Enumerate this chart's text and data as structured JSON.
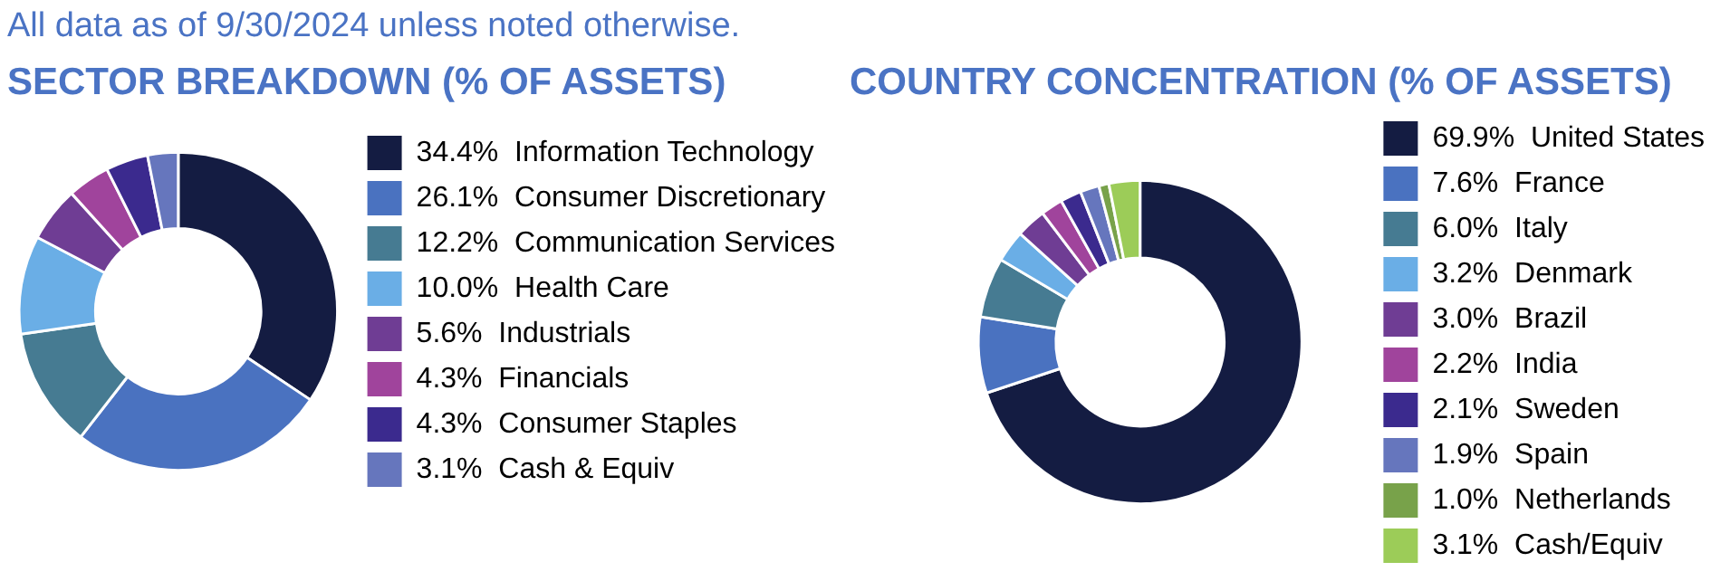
{
  "chart_data": [
    {
      "type": "donut",
      "title": "SECTOR BREAKDOWN (% OF ASSETS)",
      "annotations": [
        "All data as of 9/30/2024 unless noted otherwise."
      ],
      "legend": "right",
      "categories": [
        "Information Technology",
        "Consumer Discretionary",
        "Communication Services",
        "Health Care",
        "Industrials",
        "Financials",
        "Consumer Staples",
        "Cash & Equiv"
      ],
      "values": [
        34.4,
        26.1,
        12.2,
        10.0,
        5.6,
        4.3,
        4.3,
        3.1
      ],
      "value_labels": [
        "34.4%",
        "26.1%",
        "12.2%",
        "10.0%",
        "5.6%",
        "4.3%",
        "4.3%",
        "3.1%"
      ],
      "colors": [
        "#141c42",
        "#4a72c0",
        "#467b92",
        "#6aaee6",
        "#6f3d94",
        "#a0449c",
        "#3b2a8e",
        "#6676bd"
      ]
    },
    {
      "type": "donut",
      "title": "COUNTRY CONCENTRATION (% OF ASSETS)",
      "legend": "right",
      "categories": [
        "United States",
        "France",
        "Italy",
        "Denmark",
        "Brazil",
        "India",
        "Sweden",
        "Spain",
        "Netherlands",
        "Cash/Equiv"
      ],
      "values": [
        69.9,
        7.6,
        6.0,
        3.2,
        3.0,
        2.2,
        2.1,
        1.9,
        1.0,
        3.1
      ],
      "value_labels": [
        "69.9%",
        "7.6%",
        "6.0%",
        "3.2%",
        "3.0%",
        "2.2%",
        "2.1%",
        "1.9%",
        "1.0%",
        "3.1%"
      ],
      "colors": [
        "#141c42",
        "#4a72c0",
        "#467b92",
        "#6aaee6",
        "#6f3d94",
        "#a0449c",
        "#3b2a8e",
        "#6676bd",
        "#78a24a",
        "#9ccc58"
      ]
    }
  ]
}
